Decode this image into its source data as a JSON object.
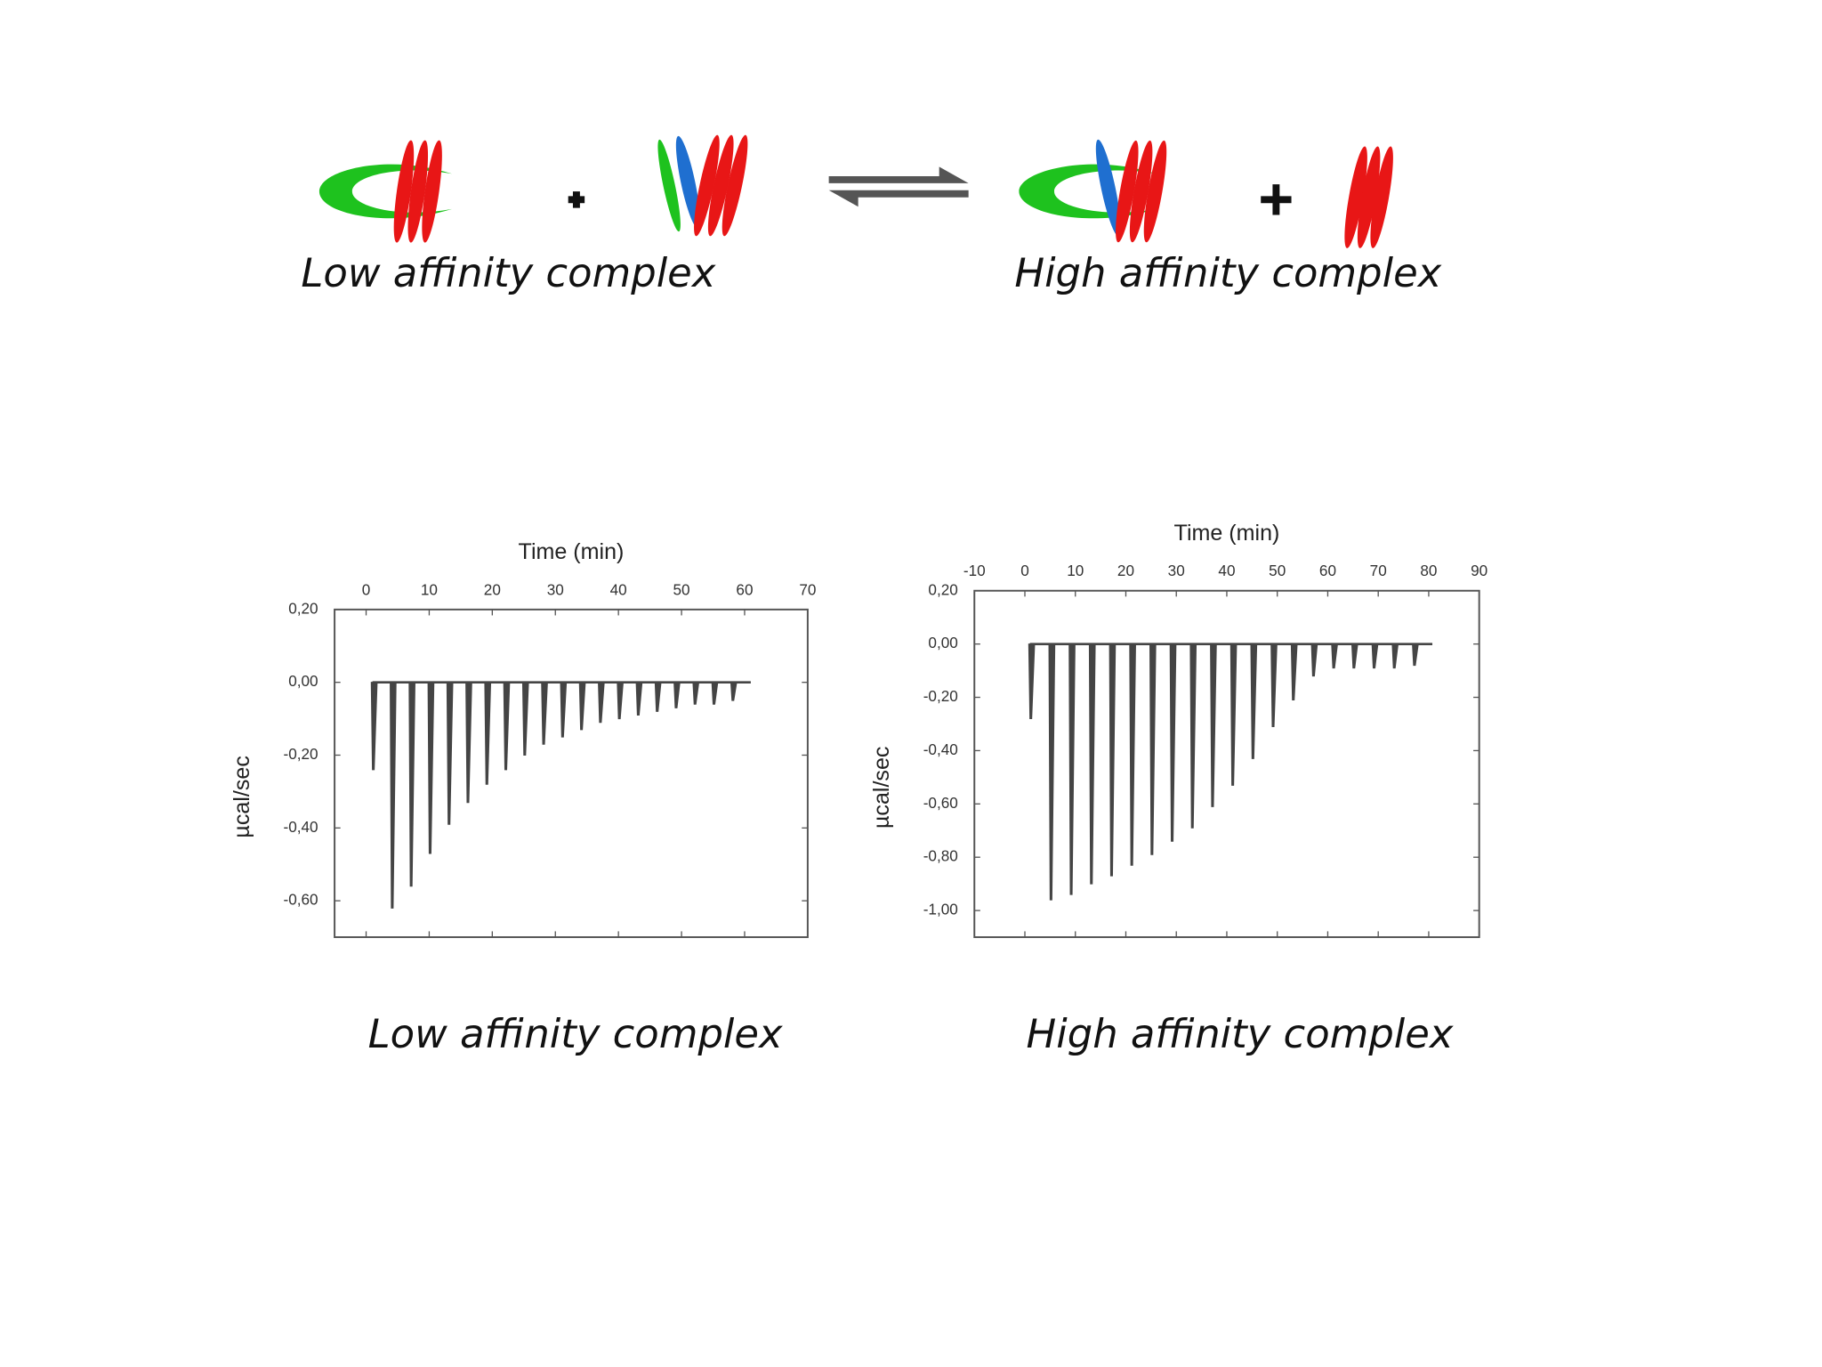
{
  "diagram": {
    "left_label": "Low affinity complex",
    "right_label": "High affinity complex"
  },
  "chart_data": [
    {
      "type": "spike",
      "caption": "Low affinity complex",
      "xlabel": "Time (min)",
      "ylabel": "µcal/sec",
      "x": [
        1,
        4,
        7,
        10,
        13,
        16,
        19,
        22,
        25,
        28,
        31,
        34,
        37,
        40,
        43,
        46,
        49,
        52,
        55,
        58
      ],
      "values": [
        -0.24,
        -0.62,
        -0.56,
        -0.47,
        -0.39,
        -0.33,
        -0.28,
        -0.24,
        -0.2,
        -0.17,
        -0.15,
        -0.13,
        -0.11,
        -0.1,
        -0.09,
        -0.08,
        -0.07,
        -0.06,
        -0.06,
        -0.05
      ],
      "color": "#444",
      "xlim": [
        -5,
        70
      ],
      "xticks": [
        0,
        10,
        20,
        30,
        40,
        50,
        60,
        70
      ],
      "ylim": [
        -0.7,
        0.2
      ],
      "yticks": [
        {
          "value": 0.2,
          "label": "0,20"
        },
        {
          "value": 0,
          "label": "0,00"
        },
        {
          "value": -0.2,
          "label": "-0,20"
        },
        {
          "value": -0.4,
          "label": "-0,40"
        },
        {
          "value": -0.6,
          "label": "-0,60"
        }
      ]
    },
    {
      "type": "spike",
      "caption": "High affinity complex",
      "xlabel": "Time (min)",
      "ylabel": "µcal/sec",
      "x": [
        1,
        5,
        9,
        13,
        17,
        21,
        25,
        29,
        33,
        37,
        41,
        45,
        49,
        53,
        57,
        61,
        65,
        69,
        73,
        77
      ],
      "values": [
        -0.28,
        -0.96,
        -0.94,
        -0.9,
        -0.87,
        -0.83,
        -0.79,
        -0.74,
        -0.69,
        -0.61,
        -0.53,
        -0.43,
        -0.31,
        -0.21,
        -0.12,
        -0.09,
        -0.09,
        -0.09,
        -0.09,
        -0.08
      ],
      "color": "#444",
      "xlim": [
        -10,
        90
      ],
      "xticks": [
        -10,
        0,
        10,
        20,
        30,
        40,
        50,
        60,
        70,
        80,
        90
      ],
      "ylim": [
        -1.1,
        0.2
      ],
      "yticks": [
        {
          "value": 0.2,
          "label": "0,20"
        },
        {
          "value": 0,
          "label": "0,00"
        },
        {
          "value": -0.2,
          "label": "-0,20"
        },
        {
          "value": -0.4,
          "label": "-0,40"
        },
        {
          "value": -0.6,
          "label": "-0,60"
        },
        {
          "value": -0.8,
          "label": "-0,80"
        },
        {
          "value": -1,
          "label": "-1,00"
        }
      ]
    }
  ]
}
